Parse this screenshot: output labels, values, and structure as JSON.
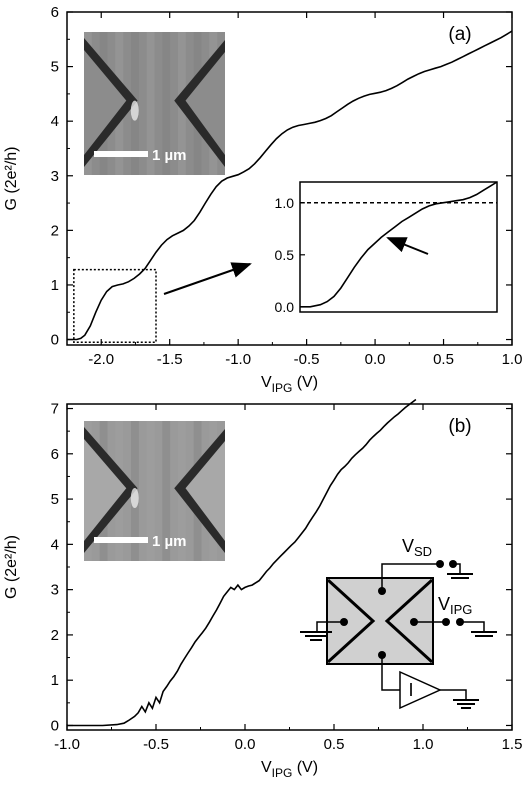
{
  "chart_data": [
    {
      "panel": "(a)",
      "type": "line",
      "xlabel": "V_IPG (V)",
      "ylabel": "G (2e²/h)",
      "xlim": [
        -2.25,
        1.0
      ],
      "ylim": [
        -0.1,
        6.0
      ],
      "xticks": [
        -2.0,
        -1.5,
        -1.0,
        -0.5,
        0.0,
        0.5,
        1.0
      ],
      "xtick_labels": [
        "-2.0",
        "-1.5",
        "-1.0",
        "-0.5",
        "0.0",
        "0.5",
        "1.0"
      ],
      "yticks": [
        0,
        1,
        2,
        3,
        4,
        5,
        6
      ],
      "ytick_labels": [
        "0",
        "1",
        "2",
        "3",
        "4",
        "5",
        "6"
      ],
      "series": [
        {
          "x": [
            -2.25,
            -2.18,
            -2.15,
            -2.12,
            -2.08,
            -2.04,
            -2.0,
            -1.96,
            -1.92,
            -1.88,
            -1.84,
            -1.8,
            -1.76,
            -1.72,
            -1.68,
            -1.64,
            -1.6,
            -1.56,
            -1.52,
            -1.48,
            -1.44,
            -1.4,
            -1.36,
            -1.32,
            -1.28,
            -1.24,
            -1.2,
            -1.16,
            -1.12,
            -1.08,
            -1.04,
            -1.0,
            -0.96,
            -0.92,
            -0.88,
            -0.84,
            -0.8,
            -0.76,
            -0.72,
            -0.68,
            -0.64,
            -0.6,
            -0.56,
            -0.52,
            -0.48,
            -0.44,
            -0.4,
            -0.36,
            -0.32,
            -0.28,
            -0.24,
            -0.2,
            -0.16,
            -0.12,
            -0.08,
            -0.04,
            0.0,
            0.04,
            0.08,
            0.12,
            0.16,
            0.2,
            0.24,
            0.28,
            0.32,
            0.36,
            0.4,
            0.44,
            0.48,
            0.52,
            0.56,
            0.6,
            0.64,
            0.68,
            0.72,
            0.76,
            0.8,
            0.84,
            0.88,
            0.92,
            0.96,
            1.0
          ],
          "y": [
            0.0,
            0.0,
            0.02,
            0.08,
            0.25,
            0.5,
            0.72,
            0.88,
            0.97,
            1.0,
            1.02,
            1.06,
            1.12,
            1.2,
            1.3,
            1.45,
            1.6,
            1.73,
            1.83,
            1.9,
            1.95,
            2.0,
            2.08,
            2.18,
            2.33,
            2.5,
            2.66,
            2.8,
            2.9,
            2.96,
            2.99,
            3.02,
            3.07,
            3.13,
            3.22,
            3.33,
            3.45,
            3.57,
            3.68,
            3.77,
            3.84,
            3.89,
            3.92,
            3.94,
            3.96,
            3.98,
            4.01,
            4.05,
            4.1,
            4.17,
            4.24,
            4.31,
            4.37,
            4.42,
            4.46,
            4.49,
            4.51,
            4.53,
            4.56,
            4.6,
            4.65,
            4.71,
            4.77,
            4.82,
            4.87,
            4.91,
            4.94,
            4.97,
            5.0,
            5.04,
            5.08,
            5.13,
            5.18,
            5.23,
            5.28,
            5.33,
            5.38,
            5.43,
            5.48,
            5.53,
            5.59,
            5.65
          ]
        }
      ],
      "inset": {
        "type": "line",
        "yticks": [
          0.0,
          0.5,
          1.0
        ],
        "ytick_labels": [
          "0.0",
          "0.5",
          "1.0"
        ],
        "ylim": [
          -0.05,
          1.2
        ],
        "reference_line": 1.0,
        "series": {
          "x": [
            -2.18,
            -2.15,
            -2.12,
            -2.1,
            -2.08,
            -2.06,
            -2.04,
            -2.02,
            -2.0,
            -1.98,
            -1.96,
            -1.94,
            -1.92,
            -1.9,
            -1.88,
            -1.86,
            -1.84,
            -1.82,
            -1.8,
            -1.78,
            -1.76,
            -1.74,
            -1.72,
            -1.7,
            -1.68,
            -1.66,
            -1.64,
            -1.62,
            -1.6
          ],
          "y": [
            0.0,
            0.0,
            0.02,
            0.05,
            0.1,
            0.18,
            0.28,
            0.38,
            0.47,
            0.55,
            0.61,
            0.67,
            0.72,
            0.77,
            0.82,
            0.86,
            0.9,
            0.94,
            0.97,
            0.99,
            1.0,
            1.01,
            1.02,
            1.03,
            1.05,
            1.08,
            1.12,
            1.16,
            1.2
          ]
        }
      },
      "annotations": {
        "scale_bar": "1 µm"
      }
    },
    {
      "panel": "(b)",
      "type": "line",
      "xlabel": "V_IPG (V)",
      "ylabel": "G (2e²/h)",
      "xlim": [
        -1.0,
        1.5
      ],
      "ylim": [
        -0.1,
        7.1
      ],
      "xticks": [
        -1.0,
        -0.5,
        0.0,
        0.5,
        1.0,
        1.5
      ],
      "xtick_labels": [
        "-1.0",
        "-0.5",
        "0.0",
        "0.5",
        "1.0",
        "1.5"
      ],
      "yticks": [
        0,
        1,
        2,
        3,
        4,
        5,
        6,
        7
      ],
      "ytick_labels": [
        "0",
        "1",
        "2",
        "3",
        "4",
        "5",
        "6",
        "7"
      ],
      "series": [
        {
          "x": [
            -1.0,
            -0.8,
            -0.72,
            -0.68,
            -0.65,
            -0.62,
            -0.6,
            -0.58,
            -0.56,
            -0.54,
            -0.52,
            -0.5,
            -0.48,
            -0.46,
            -0.44,
            -0.42,
            -0.4,
            -0.38,
            -0.36,
            -0.34,
            -0.32,
            -0.3,
            -0.28,
            -0.26,
            -0.24,
            -0.22,
            -0.2,
            -0.18,
            -0.16,
            -0.14,
            -0.12,
            -0.1,
            -0.08,
            -0.06,
            -0.04,
            -0.02,
            0.0,
            0.02,
            0.04,
            0.06,
            0.08,
            0.1,
            0.12,
            0.14,
            0.16,
            0.18,
            0.2,
            0.22,
            0.24,
            0.26,
            0.28,
            0.3,
            0.32,
            0.34,
            0.36,
            0.38,
            0.4,
            0.42,
            0.44,
            0.46,
            0.48,
            0.5,
            0.52,
            0.54,
            0.56,
            0.58,
            0.6,
            0.62,
            0.64,
            0.66,
            0.68,
            0.7,
            0.72,
            0.74,
            0.76,
            0.78,
            0.8,
            0.82,
            0.84,
            0.86,
            0.88,
            0.9,
            0.92,
            0.94,
            0.96
          ],
          "y": [
            0.0,
            0.0,
            0.02,
            0.05,
            0.12,
            0.2,
            0.28,
            0.42,
            0.3,
            0.5,
            0.38,
            0.62,
            0.5,
            0.75,
            0.86,
            0.98,
            1.08,
            1.2,
            1.35,
            1.48,
            1.6,
            1.72,
            1.85,
            1.95,
            2.05,
            2.15,
            2.28,
            2.42,
            2.55,
            2.7,
            2.85,
            2.95,
            3.05,
            3.0,
            3.1,
            3.0,
            3.05,
            3.08,
            3.1,
            3.15,
            3.2,
            3.3,
            3.4,
            3.48,
            3.58,
            3.66,
            3.74,
            3.82,
            3.9,
            3.98,
            4.05,
            4.15,
            4.25,
            4.35,
            4.48,
            4.6,
            4.72,
            4.85,
            5.0,
            5.15,
            5.3,
            5.42,
            5.55,
            5.65,
            5.72,
            5.8,
            5.9,
            5.98,
            6.05,
            6.12,
            6.2,
            6.3,
            6.38,
            6.45,
            6.52,
            6.6,
            6.68,
            6.75,
            6.82,
            6.88,
            6.95,
            7.02,
            7.08,
            7.14,
            7.2
          ]
        }
      ],
      "annotations": {
        "scale_bar": "1 µm",
        "circuit": {
          "vsd_label": "V",
          "vsd_sub": "SD",
          "vipg_label": "V",
          "vipg_sub": "IPG",
          "amp_label": "I"
        }
      }
    }
  ],
  "labels": {
    "xlabel_main": "V",
    "xlabel_sub": "IPG",
    "xlabel_unit": " (V)",
    "ylabel": "G (2e²/h)"
  }
}
